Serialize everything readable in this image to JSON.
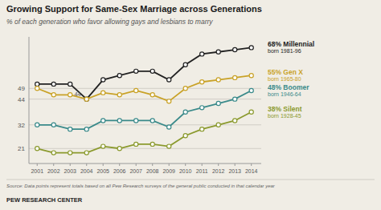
{
  "chart_data": {
    "type": "line",
    "title": "Growing Support for Same-Sex Marriage across Generations",
    "subtitle": "% of each generation who favor  allowing gays and lesbians to marry",
    "source": "Source: Data points represent totals based on all Pew Research surveys of the general public conducted in that calendar year",
    "footer": "PEW RESEARCH CENTER",
    "x": [
      2001,
      2002,
      2003,
      2004,
      2005,
      2006,
      2007,
      2008,
      2009,
      2010,
      2011,
      2012,
      2013,
      2014
    ],
    "xlim": [
      2000.5,
      2014.6
    ],
    "xticks": [
      2001,
      2002,
      2003,
      2004,
      2005,
      2006,
      2007,
      2008,
      2009,
      2010,
      2011,
      2012,
      2013,
      2014
    ],
    "ylim": [
      14,
      73
    ],
    "yticks": [
      21,
      32,
      44,
      49
    ],
    "grid": true,
    "marker": "circle",
    "series": [
      {
        "name": "68% Millennial",
        "description": "born 1981-96",
        "color": "#222222",
        "values": [
          51,
          51,
          51,
          44,
          53,
          55,
          57,
          57,
          53,
          60,
          65,
          66,
          67,
          68
        ]
      },
      {
        "name": "55% Gen X",
        "description": "born 1965-80",
        "color": "#c9a227",
        "values": [
          49,
          46,
          46,
          44,
          47,
          46,
          48,
          46,
          43,
          49,
          52,
          53,
          54,
          55
        ]
      },
      {
        "name": "48% Boomer",
        "description": "born 1946-64",
        "color": "#3a8a8a",
        "values": [
          32,
          32,
          30,
          30,
          34,
          34,
          34,
          34,
          31,
          38,
          40,
          42,
          44,
          48
        ]
      },
      {
        "name": "38% Silent",
        "description": "born 1928-45",
        "color": "#8b9a2e",
        "values": [
          21,
          19,
          19,
          19,
          22,
          21,
          23,
          23,
          22,
          27,
          30,
          32,
          34,
          38
        ]
      }
    ],
    "annotations": [
      {
        "text": "44",
        "x": 2004,
        "y": 44
      }
    ]
  }
}
